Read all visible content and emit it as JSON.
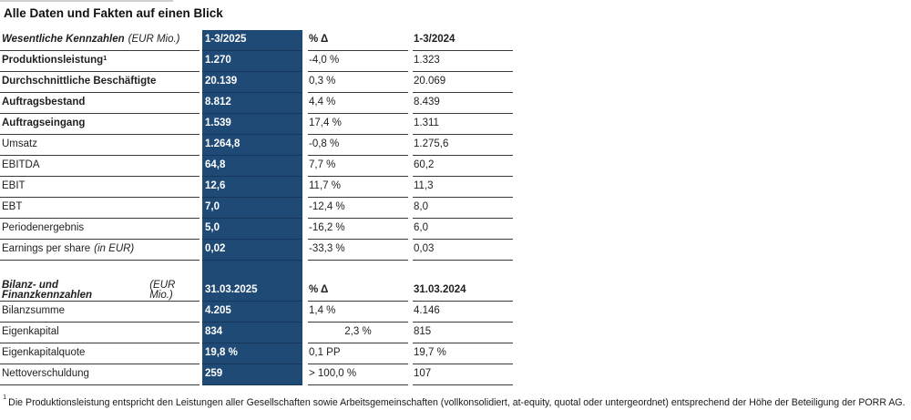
{
  "title": "Alle Daten und Fakten auf einen Blick",
  "colors": {
    "highlight_column": "#1F4A76",
    "highlight_divider": "#16365C",
    "rule": "#3A3A3A",
    "text": "#1F1F1F"
  },
  "sections": [
    {
      "header": {
        "label": "Wesentliche Kennzahlen",
        "unit": "(EUR Mio.)",
        "current": "1-3/2025",
        "delta": "% Δ",
        "prior": "1-3/2024"
      },
      "rows": [
        {
          "label": "Produktionsleistung",
          "sup": "1",
          "bold": true,
          "current": "1.270",
          "delta": "-4,0 %",
          "prior": "1.323"
        },
        {
          "label": "Durchschnittliche Beschäftigte",
          "bold": true,
          "current": "20.139",
          "delta": "0,3 %",
          "prior": "20.069"
        },
        {
          "label": "Auftragsbestand",
          "bold": true,
          "current": "8.812",
          "delta": "4,4 %",
          "prior": "8.439"
        },
        {
          "label": "Auftragseingang",
          "bold": true,
          "current": "1.539",
          "delta": "17,4 %",
          "prior": "1.311"
        },
        {
          "label": "Umsatz",
          "current": "1.264,8",
          "delta": "-0,8 %",
          "prior": "1.275,6"
        },
        {
          "label": "EBITDA",
          "current": "64,8",
          "delta": "7,7 %",
          "prior": "60,2"
        },
        {
          "label": "EBIT",
          "current": "12,6",
          "delta": "11,7 %",
          "prior": "11,3"
        },
        {
          "label": "EBT",
          "current": "7,0",
          "delta": "-12,4 %",
          "prior": "8,0"
        },
        {
          "label": "Periodenergebnis",
          "current": "5,0",
          "delta": "-16,2 %",
          "prior": "6,0"
        },
        {
          "label": "Earnings per share",
          "suffix": "(in EUR)",
          "current": "0,02",
          "delta": "-33,3 %",
          "prior": "0,03"
        }
      ]
    },
    {
      "header": {
        "label": "Bilanz- und Finanzkennzahlen",
        "unit": "(EUR Mio.)",
        "current": "31.03.2025",
        "delta": "% Δ",
        "prior": "31.03.2024"
      },
      "rows": [
        {
          "label": "Bilanzsumme",
          "current": "4.205",
          "delta": "1,4 %",
          "prior": "4.146"
        },
        {
          "label": "Eigenkapital",
          "current": "834",
          "delta": "2,3 %",
          "delta_center": true,
          "prior": "815"
        },
        {
          "label": "Eigenkapitalquote",
          "current": "19,8 %",
          "delta": "0,1 PP",
          "prior": "19,7 %"
        },
        {
          "label": "Nettoverschuldung",
          "current": "259",
          "delta": "> 100,0 %",
          "prior": "107"
        }
      ]
    }
  ],
  "footnote": {
    "marker": "1",
    "text": "Die Produktionsleistung entspricht den Leistungen aller Gesellschaften sowie Arbeitsgemeinschaften (vollkonsolidiert, at-equity, quotal oder untergeordnet) entsprechend der Höhe der Beteiligung der PORR AG."
  }
}
